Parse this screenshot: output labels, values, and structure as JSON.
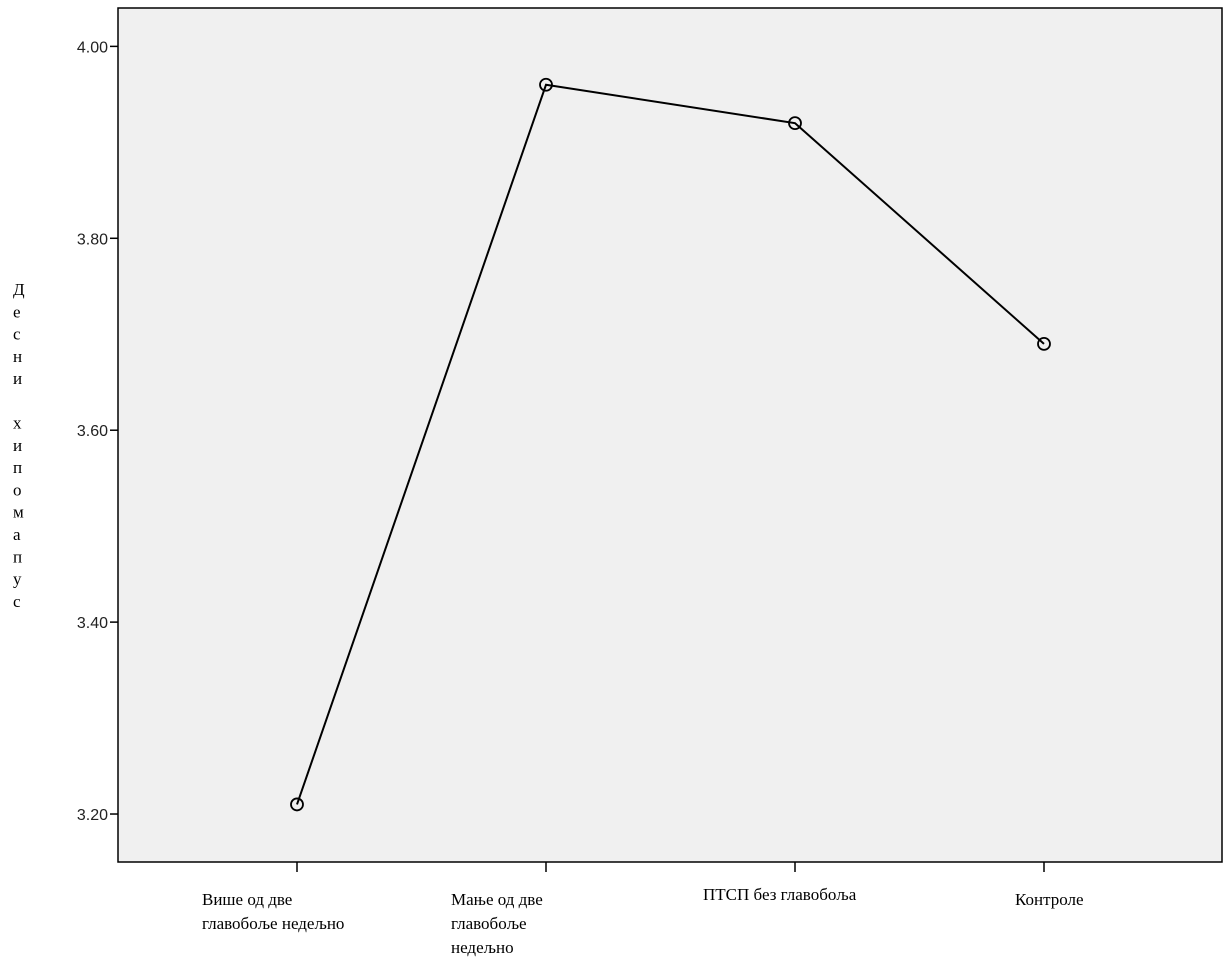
{
  "chart_data": {
    "type": "line",
    "categories": [
      [
        "Више од две",
        "главобоље недељно"
      ],
      [
        "Мање од две",
        "главобоље",
        "недељно"
      ],
      [
        "ПТСП без главобоља"
      ],
      [
        "Контроле"
      ]
    ],
    "series": [
      {
        "values": [
          3.21,
          3.96,
          3.92,
          3.69
        ]
      }
    ],
    "ylabel": "Десни хипомапус",
    "yticks": [
      "3.20",
      "3.40",
      "3.60",
      "3.80",
      "4.00"
    ],
    "ylim": [
      3.15,
      4.04
    ],
    "grid": false,
    "markers": "open-circle",
    "colors": {
      "plot_bg": "#f0f0f0",
      "line": "#000000",
      "axis": "#000000"
    }
  }
}
